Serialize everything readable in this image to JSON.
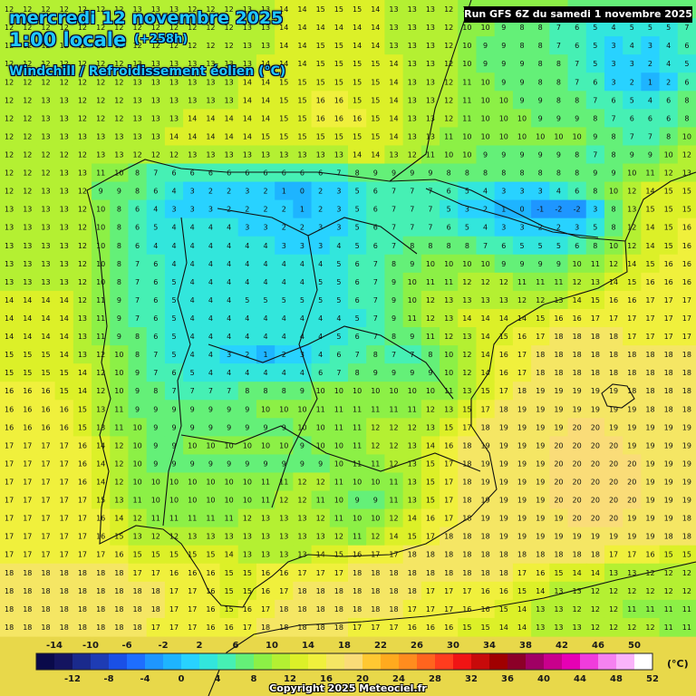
{
  "header": {
    "date": "mercredi 12 novembre 2025",
    "time": "1:00 locale",
    "offset": "(+258h)",
    "parameter": "Windchill / Refroidissement éolien (°C)",
    "run": "Run GFS 6Z du samedi 1 novembre 2025"
  },
  "legend": {
    "unit": "(°C)",
    "values": [
      -14,
      -12,
      -10,
      -8,
      -6,
      -4,
      -2,
      0,
      2,
      4,
      6,
      8,
      10,
      12,
      14,
      16,
      18,
      20,
      22,
      24,
      26,
      28,
      30,
      32,
      34,
      36,
      38,
      40,
      42,
      44,
      46,
      48,
      50,
      52
    ],
    "colors": [
      "#0a0a4a",
      "#141460",
      "#1a2a8c",
      "#1e3cb4",
      "#1a50e6",
      "#1e6eff",
      "#1e96ff",
      "#1eb4ff",
      "#28d2ff",
      "#32e6dc",
      "#46f0b4",
      "#64f078",
      "#8cf046",
      "#b4f032",
      "#dcf028",
      "#f0f03c",
      "#f5e664",
      "#fadc78",
      "#ffc832",
      "#ffaa1e",
      "#ff8c1e",
      "#ff641e",
      "#ff3c1e",
      "#f01414",
      "#c80a0a",
      "#a00000",
      "#8c0028",
      "#a00064",
      "#c8008c",
      "#e600b4",
      "#f03cdc",
      "#f582f0",
      "#fab4fa",
      "#ffffff"
    ]
  },
  "map": {
    "grid_columns": 38,
    "grid_rows": 35,
    "grid": [
      "12 12 12 12 12 12 12 13 13 13 12 12 12 13 13 14 14 15 15 15 14 13 13 13 12 11 11 10 10 10 10 9 9 9 9 9 9 9",
      "12 12 12 12 12 12 12 12 12 12 12 12 12 13 13 14 14 14 14 14 14 13 13 13 12 10 10 9 8 8 7 6 5 4 5 5 5 7",
      "12 12 12 12 12 12 12 12 12 12 12 12 12 13 13 14 14 15 15 14 14 13 13 13 12 10 9 9 8 8 7 6 5 3 4 3 4 6",
      "12 12 12 12 12 12 12 13 13 13 13 13 13 13 14 14 14 15 15 15 15 14 13 13 12 10 9 9 9 8 8 7 5 3 3 2 4 5",
      "12 12 12 12 12 12 12 13 13 13 13 13 13 14 14 15 15 15 15 15 15 14 13 13 12 11 10 9 9 8 8 7 6 3 2 1 2 6",
      "12 12 13 13 12 12 12 13 13 13 13 13 13 14 14 15 15 16 16 15 15 14 13 13 12 11 10 10 9 9 8 8 7 6 5 4 6 8",
      "12 12 13 13 12 12 12 13 13 13 14 14 14 14 14 15 15 16 16 16 15 14 13 13 12 11 10 10 10 9 9 9 8 7 6 6 6 8",
      "12 12 13 13 13 13 13 13 13 14 14 14 14 14 15 15 15 15 15 15 15 14 13 13 11 10 10 10 10 10 10 10 9 8 7 7 8 10",
      "12 12 12 12 12 13 13 12 12 12 13 13 13 13 13 13 13 13 13 14 14 13 12 11 10 10 9 9 9 9 9 8 7 8 9 9 10 12",
      "12 12 12 13 13 11 10 8 7 6 6 6 6 6 6 6 6 6 7 8 9 9 9 9 8 8 8 8 8 8 8 8 9 9 10 11 12 13",
      "12 12 13 13 12 9 9 8 6 4 3 2 2 3 2 1 0 2 3 5 6 7 7 7 6 5 4 3 3 3 4 6 8 10 12 14 15 15",
      "13 13 13 13 12 10 8 6 4 3 3 3 2 2 2 2 1 2 3 5 6 7 7 7 5 3 2 1 0 -1 -2 -2 3 8 13 15 15 15",
      "13 13 13 13 12 10 8 6 5 4 4 4 4 3 3 2 2 3 3 5 6 7 7 7 6 5 4 3 3 2 2 3 5 8 12 14 15 16",
      "13 13 13 13 12 10 8 6 4 4 4 4 4 4 4 3 3 3 4 5 6 7 8 8 8 8 7 6 5 5 5 6 8 10 12 14 15 16",
      "13 13 13 13 12 10 8 7 6 4 4 4 4 4 4 4 4 4 5 6 7 8 9 10 10 10 10 9 9 9 9 10 11 12 14 15 16 16",
      "13 13 13 13 12 10 8 7 6 5 4 4 4 4 4 4 4 5 5 6 7 9 10 11 11 12 12 12 11 11 11 12 13 14 15 16 16 16",
      "14 14 14 14 12 11 9 7 6 5 4 4 4 5 5 5 5 5 5 6 7 9 10 12 13 13 13 13 12 12 13 14 15 16 16 17 17 17",
      "14 14 14 14 13 11 9 7 6 5 4 4 4 4 4 4 4 4 4 5 7 9 11 12 13 14 14 14 14 15 16 16 17 17 17 17 17 17",
      "14 14 14 14 13 11 9 8 6 5 4 4 4 4 4 4 4 4 5 6 7 8 9 11 12 13 14 15 16 17 18 18 18 18 17 17 17 17",
      "15 15 15 14 13 12 10 8 7 5 4 4 3 2 1 2 3 4 6 7 8 7 7 8 10 12 14 16 17 18 18 18 18 18 18 18 18 18",
      "15 15 15 15 14 12 10 9 7 6 5 4 4 4 4 4 4 6 7 8 9 9 9 9 10 12 14 16 17 18 18 18 18 18 18 18 18 18",
      "16 16 16 15 14 12 10 9 8 7 7 7 7 8 8 8 9 10 10 10 10 10 10 10 11 13 15 17 18 19 19 19 19 19 18 18 18 18",
      "16 16 16 16 15 13 11 9 9 9 9 9 9 9 10 10 10 11 11 11 11 11 11 12 13 15 17 18 19 19 19 19 19 19 19 18 18 18",
      "16 16 16 16 15 13 11 10 9 9 9 9 9 9 9 9 10 10 11 11 12 12 12 13 15 17 18 19 19 19 19 20 20 19 19 19 19 19",
      "17 17 17 17 16 14 12 10 9 9 10 10 10 10 10 10 9 10 10 11 12 12 13 14 16 18 19 19 19 19 20 20 20 20 19 19 19 19",
      "17 17 17 17 16 14 12 10 9 9 9 9 9 9 9 9 9 9 10 11 11 12 13 15 17 18 19 19 19 19 20 20 20 20 20 19 19 19",
      "17 17 17 17 16 14 12 10 10 10 10 10 10 10 11 11 12 12 11 10 10 11 13 15 17 18 19 19 19 19 20 20 20 20 20 19 19 19",
      "17 17 17 17 17 15 13 11 10 10 10 10 10 10 11 12 12 11 10 9 9 11 13 15 17 18 19 19 19 19 20 20 20 20 20 19 19 19",
      "17 17 17 17 17 16 14 12 11 11 11 11 11 12 13 13 13 12 11 10 10 12 14 16 17 18 19 19 19 19 19 20 20 20 19 19 19 18",
      "17 17 17 17 17 16 15 13 12 12 13 13 13 13 13 13 13 13 12 11 12 14 15 17 18 18 18 19 19 19 19 19 19 19 19 19 18 18",
      "17 17 17 17 17 17 16 15 15 15 15 15 14 13 13 13 13 14 15 16 17 17 18 18 18 18 18 18 18 18 18 18 18 17 17 16 15 15",
      "18 18 18 18 18 18 18 17 17 16 16 16 15 15 16 16 17 17 17 18 18 18 18 18 18 18 18 18 17 16 15 14 14 13 13 12 12 12",
      "18 18 18 18 18 18 18 18 18 17 17 16 15 15 16 17 18 18 18 18 18 18 18 17 17 17 16 16 15 14 13 13 12 12 12 12 12 12",
      "18 18 18 18 18 18 18 18 18 17 17 16 15 16 17 18 18 18 18 18 18 18 17 17 17 16 16 15 14 13 13 12 12 12 11 11 11 11",
      "18 18 18 18 18 18 18 18 17 17 17 16 16 17 18 18 18 18 18 17 17 17 16 16 16 15 15 14 14 13 13 13 12 12 12 12 11 11"
    ]
  },
  "copyright": "Copyright 2025 Meteociel.fr"
}
